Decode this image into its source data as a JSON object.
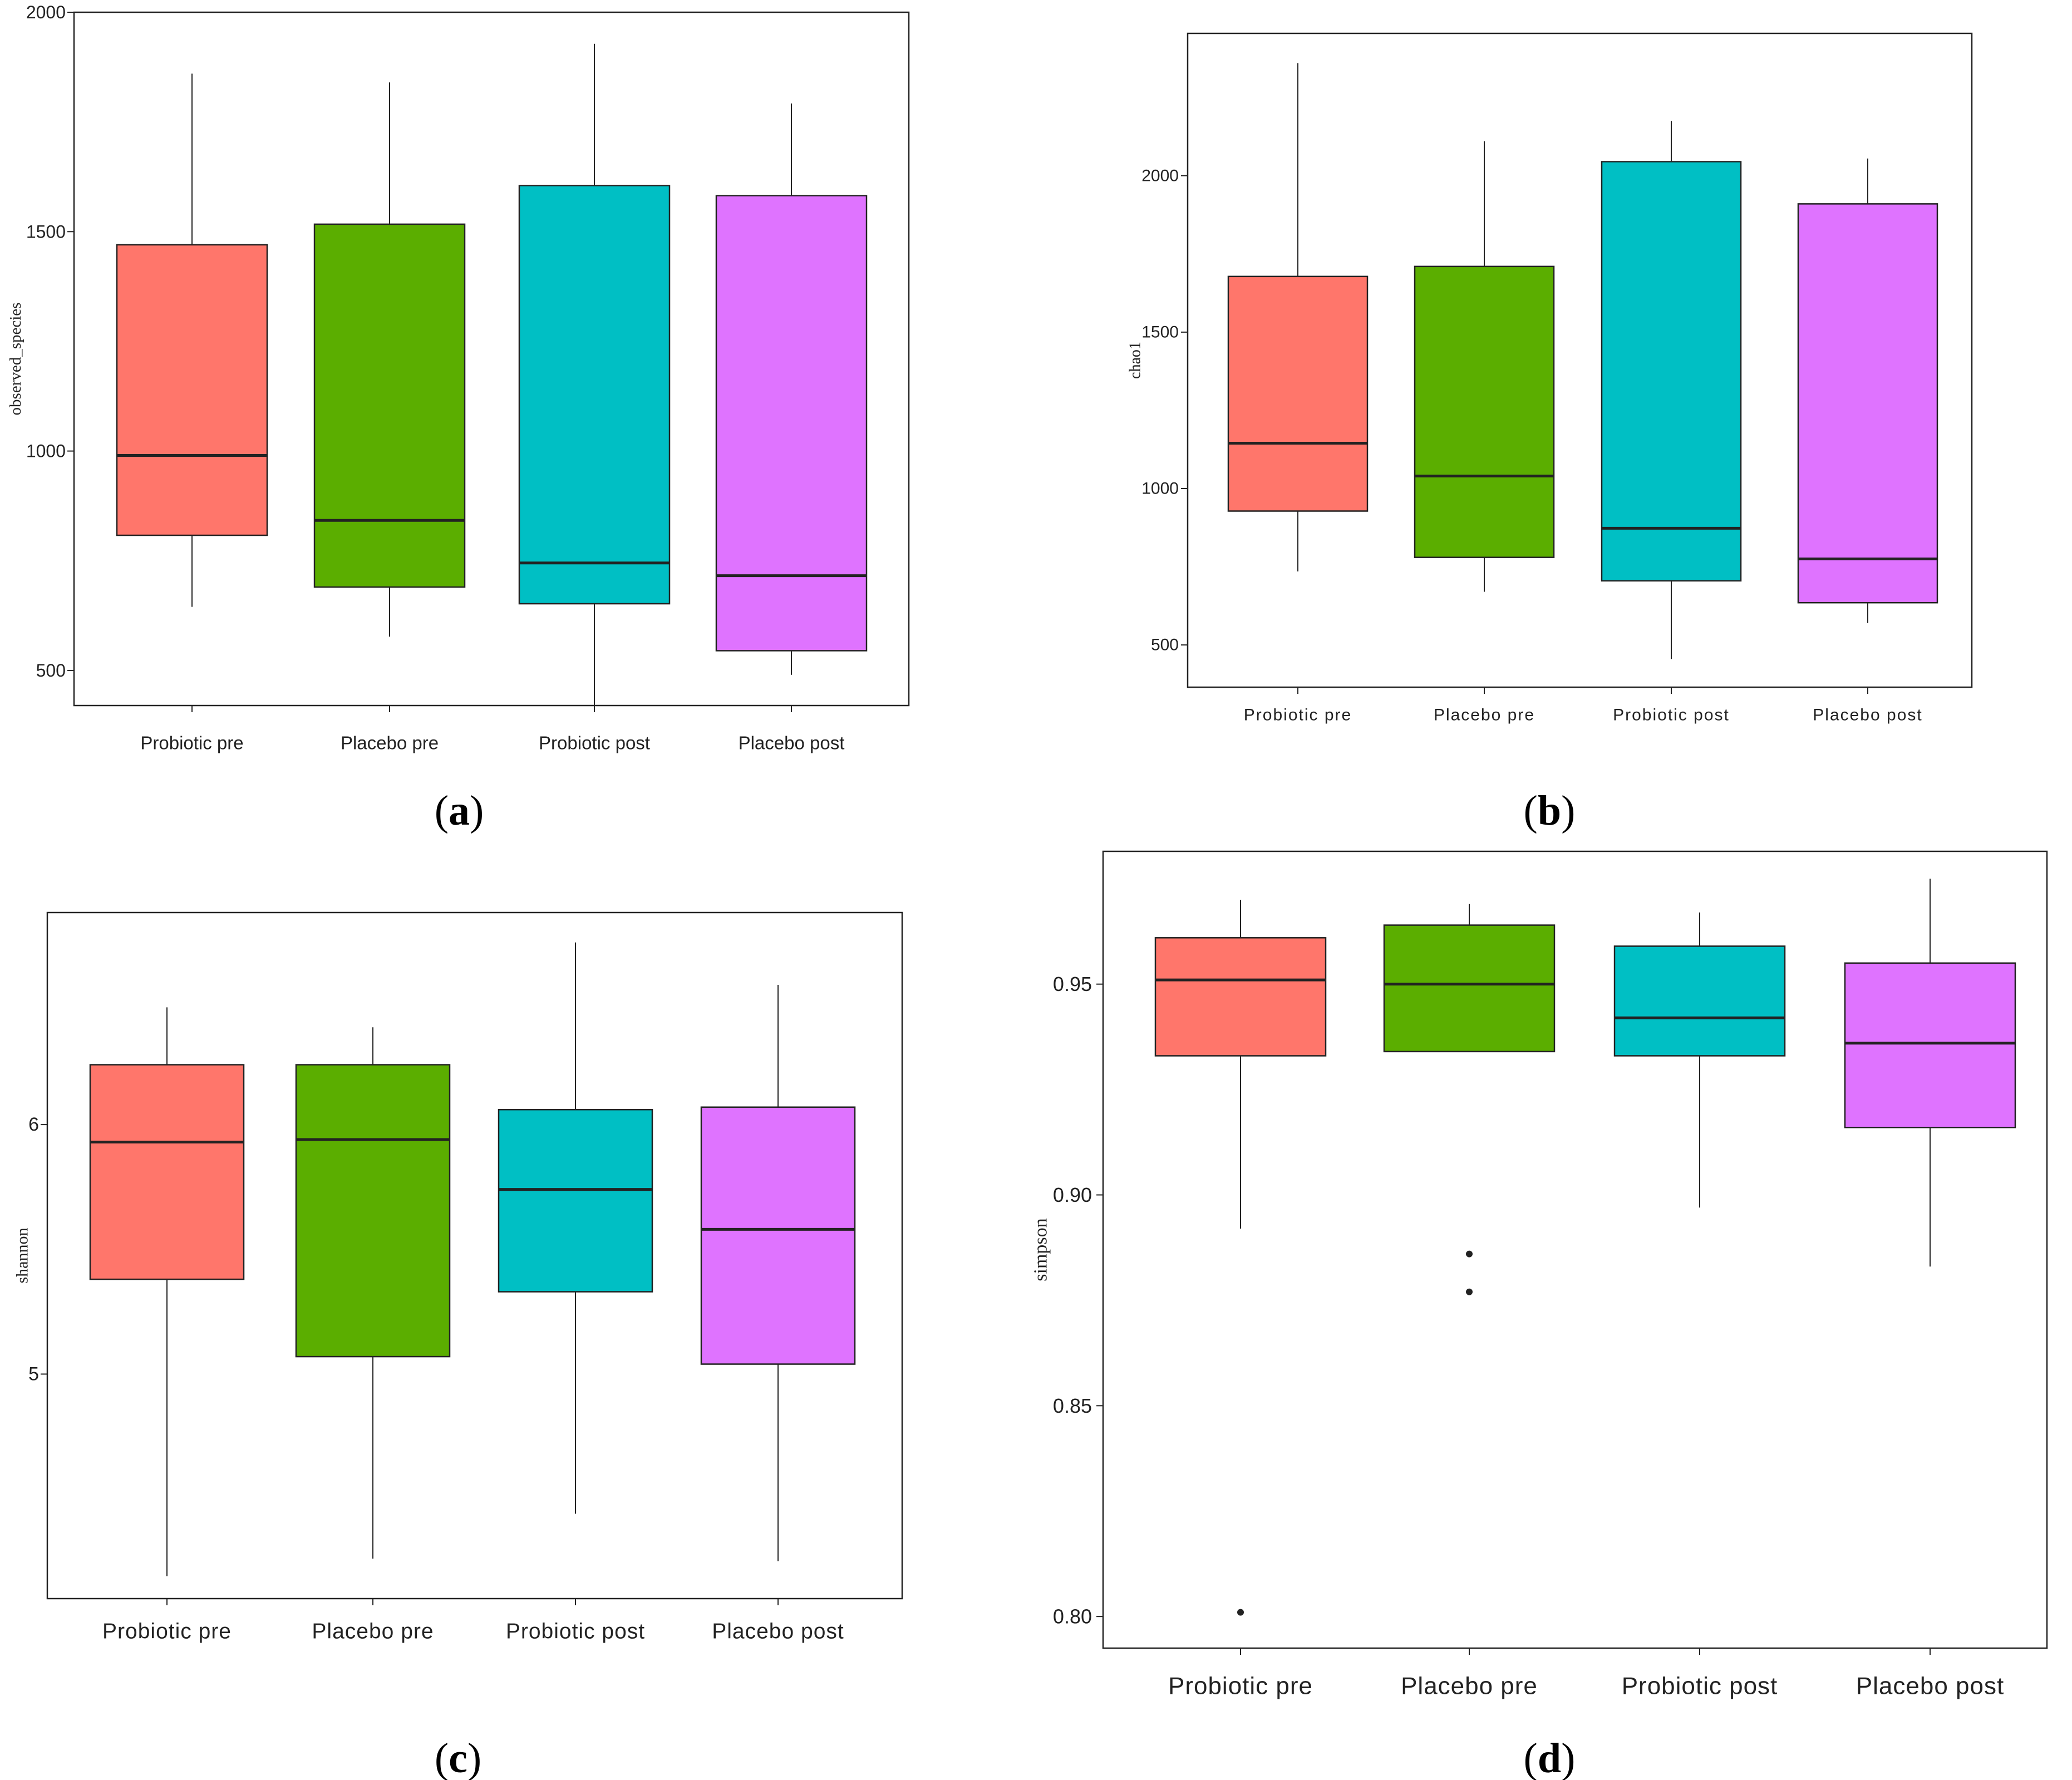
{
  "colors": {
    "series": [
      "#FF766B",
      "#5BAE00",
      "#00BFC4",
      "#DF73FF"
    ],
    "stroke": "#222222"
  },
  "chart_data": [
    {
      "type": "box",
      "panel_label": [
        "(",
        "a",
        ")"
      ],
      "ylabel": "observed_species",
      "ylim": [
        420,
        2000
      ],
      "yticks": [
        500,
        1000,
        1500,
        2000
      ],
      "categories": [
        "Probiotic pre",
        "Placebo pre",
        "Probiotic post",
        "Placebo post"
      ],
      "boxes": [
        {
          "min": 645,
          "q1": 808,
          "median": 990,
          "q3": 1470,
          "max": 1860,
          "outliers": []
        },
        {
          "min": 577,
          "q1": 690,
          "median": 842,
          "q3": 1517,
          "max": 1840,
          "outliers": []
        },
        {
          "min": 418,
          "q1": 652,
          "median": 745,
          "q3": 1605,
          "max": 1928,
          "outliers": []
        },
        {
          "min": 490,
          "q1": 545,
          "median": 716,
          "q3": 1582,
          "max": 1792,
          "outliers": []
        }
      ]
    },
    {
      "type": "box",
      "panel_label": [
        "(",
        "b",
        ")"
      ],
      "ylabel": "chao1",
      "ylim": [
        365,
        2455
      ],
      "yticks": [
        500,
        1000,
        1500,
        2000
      ],
      "categories": [
        "Probiotic pre",
        "Placebo pre",
        "Probiotic post",
        "Placebo post"
      ],
      "boxes": [
        {
          "min": 735,
          "q1": 928,
          "median": 1145,
          "q3": 1678,
          "max": 2360,
          "outliers": []
        },
        {
          "min": 670,
          "q1": 780,
          "median": 1040,
          "q3": 1710,
          "max": 2110,
          "outliers": []
        },
        {
          "min": 455,
          "q1": 705,
          "median": 873,
          "q3": 2045,
          "max": 2175,
          "outliers": []
        },
        {
          "min": 570,
          "q1": 635,
          "median": 775,
          "q3": 1910,
          "max": 2055,
          "outliers": []
        }
      ]
    },
    {
      "type": "box",
      "panel_label": [
        "(",
        "c",
        ")"
      ],
      "ylabel": "shannon",
      "ylim": [
        4.1,
        6.85
      ],
      "yticks": [
        5,
        6
      ],
      "categories": [
        "Probiotic pre",
        "Placebo pre",
        "Probiotic post",
        "Placebo post"
      ],
      "boxes": [
        {
          "min": 4.19,
          "q1": 5.38,
          "median": 5.93,
          "q3": 6.24,
          "max": 6.47,
          "outliers": []
        },
        {
          "min": 4.26,
          "q1": 5.07,
          "median": 5.94,
          "q3": 6.24,
          "max": 6.39,
          "outliers": []
        },
        {
          "min": 4.44,
          "q1": 5.33,
          "median": 5.74,
          "q3": 6.06,
          "max": 6.73,
          "outliers": []
        },
        {
          "min": 4.25,
          "q1": 5.04,
          "median": 5.58,
          "q3": 6.07,
          "max": 6.56,
          "outliers": []
        }
      ]
    },
    {
      "type": "box",
      "panel_label": [
        "(",
        "d",
        ")"
      ],
      "ylabel": "simpson",
      "ylim": [
        0.7925,
        0.9815
      ],
      "yticks": [
        0.8,
        0.85,
        0.9,
        0.95
      ],
      "ytick_labels": [
        "0.80",
        "0.85",
        "0.90",
        "0.95"
      ],
      "categories": [
        "Probiotic pre",
        "Placebo pre",
        "Probiotic post",
        "Placebo post"
      ],
      "boxes": [
        {
          "min": 0.892,
          "q1": 0.933,
          "median": 0.951,
          "q3": 0.961,
          "max": 0.97,
          "outliers": [
            0.801
          ]
        },
        {
          "min": 0.934,
          "q1": 0.934,
          "median": 0.95,
          "q3": 0.964,
          "max": 0.969,
          "outliers": [
            0.886,
            0.877
          ]
        },
        {
          "min": 0.897,
          "q1": 0.933,
          "median": 0.942,
          "q3": 0.959,
          "max": 0.967,
          "outliers": []
        },
        {
          "min": 0.883,
          "q1": 0.916,
          "median": 0.936,
          "q3": 0.955,
          "max": 0.975,
          "outliers": []
        }
      ]
    }
  ]
}
